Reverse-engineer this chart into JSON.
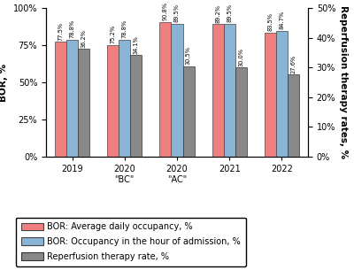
{
  "groups": [
    "2019",
    "2020\n\"BC\"",
    "2020\n\"AC\"",
    "2021",
    "2022"
  ],
  "bor_avg": [
    77.5,
    75.2,
    90.8,
    89.2,
    83.5
  ],
  "bor_hour": [
    78.8,
    78.8,
    89.5,
    89.5,
    84.7
  ],
  "reperfusion": [
    36.2,
    34.1,
    30.5,
    30.0,
    27.6
  ],
  "bor_avg_labels": [
    "77.5%",
    "75.2%",
    "90.8%",
    "89.2%",
    "83.5%"
  ],
  "bor_hour_labels": [
    "78.8%",
    "78.8%",
    "89.5%",
    "89.5%",
    "84.7%"
  ],
  "reperfusion_labels": [
    "36.2%",
    "34.1%",
    "30.5%",
    "30.0%",
    "27.6%"
  ],
  "color_pink": "#f08080",
  "color_blue": "#89b4d4",
  "color_gray": "#888888",
  "ylabel_left": "BOR, %",
  "ylabel_right": "Reperfusion therapy rates, %",
  "ylim_left": [
    0,
    100
  ],
  "ylim_right": [
    0,
    50
  ],
  "yticks_left": [
    0,
    25,
    50,
    75,
    100
  ],
  "yticks_right": [
    0,
    10,
    20,
    30,
    40,
    50
  ],
  "yticklabels_left": [
    "0%",
    "25%",
    "50%",
    "75%",
    "100%"
  ],
  "yticklabels_right": [
    "0%",
    "10%",
    "20%",
    "30%",
    "40%",
    "50%"
  ],
  "legend_labels": [
    "BOR: Average daily occupancy, %",
    "BOR: Occupancy in the hour of admission, %",
    "Reperfusion therapy rate, %"
  ],
  "bar_width": 0.22,
  "label_fontsize": 4.8,
  "axis_fontsize": 7.5,
  "legend_fontsize": 7,
  "tick_fontsize": 7
}
